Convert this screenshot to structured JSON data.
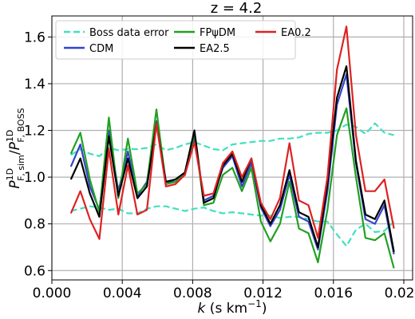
{
  "chart_data": {
    "type": "line",
    "title": "z = 4.2",
    "xlabel_parts": [
      "k",
      " (s km",
      "−1",
      ")"
    ],
    "ylabel_parts": {
      "p": "P",
      "num_sup": "1D",
      "num_sub": "F, sim",
      "slash": "/",
      "den_sup": "1D",
      "den_sub": "F, BOSS"
    },
    "xlim": [
      0.0,
      0.0205
    ],
    "ylim": [
      0.56,
      1.69
    ],
    "xticks": [
      0.0,
      0.004,
      0.008,
      0.012,
      0.016,
      0.02
    ],
    "xtick_labels": [
      "0.000",
      "0.004",
      "0.008",
      "0.012",
      "0.016",
      "0.020"
    ],
    "yticks": [
      0.6,
      0.8,
      1.0,
      1.2,
      1.4,
      1.6
    ],
    "ytick_labels": [
      "0.6",
      "0.8",
      "1.0",
      "1.2",
      "1.4",
      "1.6"
    ],
    "grid": true,
    "legend_placement": "top",
    "x": [
      0.00108,
      0.00162,
      0.00216,
      0.0027,
      0.00324,
      0.00378,
      0.00432,
      0.00486,
      0.0054,
      0.00594,
      0.00648,
      0.00702,
      0.00756,
      0.0081,
      0.00864,
      0.00918,
      0.00972,
      0.01026,
      0.0108,
      0.01134,
      0.01188,
      0.01242,
      0.01296,
      0.0135,
      0.01404,
      0.01458,
      0.01512,
      0.01566,
      0.0162,
      0.01674,
      0.01728,
      0.01782,
      0.01836,
      0.0189,
      0.01944
    ],
    "series": [
      {
        "name": "Boss data error",
        "color": "#40e0c0",
        "style": "dashed",
        "width": 2.2,
        "values": [
          1.095,
          1.12,
          1.1,
          1.09,
          1.125,
          1.115,
          1.12,
          1.12,
          1.125,
          1.14,
          1.115,
          1.125,
          1.14,
          1.15,
          1.135,
          1.12,
          1.115,
          1.14,
          1.145,
          1.15,
          1.155,
          1.155,
          1.165,
          1.165,
          1.17,
          1.185,
          1.19,
          1.19,
          1.2,
          1.225,
          1.215,
          1.185,
          1.23,
          1.19,
          1.18
        ]
      },
      {
        "name": "Boss data error lower",
        "color": "#40e0c0",
        "style": "dashed",
        "width": 2.2,
        "values": [
          0.855,
          0.865,
          0.875,
          0.87,
          0.86,
          0.865,
          0.845,
          0.845,
          0.865,
          0.875,
          0.875,
          0.865,
          0.855,
          0.865,
          0.87,
          0.855,
          0.845,
          0.85,
          0.845,
          0.84,
          0.835,
          0.835,
          0.825,
          0.83,
          0.83,
          0.82,
          0.81,
          0.81,
          0.755,
          0.705,
          0.775,
          0.8,
          0.765,
          0.77,
          0.81
        ]
      },
      {
        "name": "CDM",
        "color": "#3344cc",
        "style": "solid",
        "width": 2.2,
        "values": [
          1.045,
          1.14,
          0.96,
          0.86,
          1.2,
          0.94,
          1.11,
          0.92,
          0.98,
          1.24,
          0.98,
          0.98,
          1.01,
          1.17,
          0.9,
          0.92,
          1.04,
          1.09,
          0.96,
          1.06,
          0.87,
          0.79,
          0.86,
          1.01,
          0.83,
          0.81,
          0.69,
          0.94,
          1.31,
          1.44,
          1.06,
          0.82,
          0.8,
          0.88,
          0.67
        ]
      },
      {
        "name": "FPψDM",
        "color": "#22a022",
        "style": "solid",
        "width": 2.2,
        "values": [
          1.1,
          1.19,
          0.99,
          0.85,
          1.255,
          0.91,
          1.165,
          0.93,
          0.97,
          1.29,
          0.97,
          0.98,
          1.01,
          1.19,
          0.88,
          0.89,
          1.01,
          1.04,
          0.94,
          1.04,
          0.81,
          0.725,
          0.8,
          0.98,
          0.78,
          0.76,
          0.635,
          0.86,
          1.18,
          1.295,
          1.0,
          0.74,
          0.73,
          0.76,
          0.61
        ]
      },
      {
        "name": "EA2.5",
        "color": "#000000",
        "style": "solid",
        "width": 2.2,
        "values": [
          0.99,
          1.08,
          0.93,
          0.83,
          1.175,
          0.92,
          1.08,
          0.91,
          0.96,
          1.23,
          0.98,
          0.99,
          1.02,
          1.2,
          0.89,
          0.91,
          1.05,
          1.1,
          0.98,
          1.08,
          0.88,
          0.8,
          0.88,
          1.03,
          0.85,
          0.83,
          0.7,
          0.97,
          1.34,
          1.475,
          1.07,
          0.84,
          0.82,
          0.9,
          0.68
        ]
      },
      {
        "name": "EA0.2",
        "color": "#dd2222",
        "style": "solid",
        "width": 2.2,
        "values": [
          0.845,
          0.94,
          0.82,
          0.735,
          1.12,
          0.84,
          1.05,
          0.84,
          0.86,
          1.23,
          0.96,
          0.97,
          1.01,
          1.15,
          0.92,
          0.93,
          1.06,
          1.11,
          1.0,
          1.08,
          0.89,
          0.82,
          0.91,
          1.145,
          0.9,
          0.88,
          0.74,
          1.0,
          1.46,
          1.645,
          1.18,
          0.94,
          0.94,
          0.99,
          0.78
        ]
      }
    ],
    "legend": [
      {
        "label": "Boss data error",
        "series": 0
      },
      {
        "label": "CDM",
        "series": 2
      },
      {
        "label": "FPψDM",
        "series": 3
      },
      {
        "label": "EA2.5",
        "series": 4
      },
      {
        "label": "EA0.2",
        "series": 5
      }
    ]
  }
}
